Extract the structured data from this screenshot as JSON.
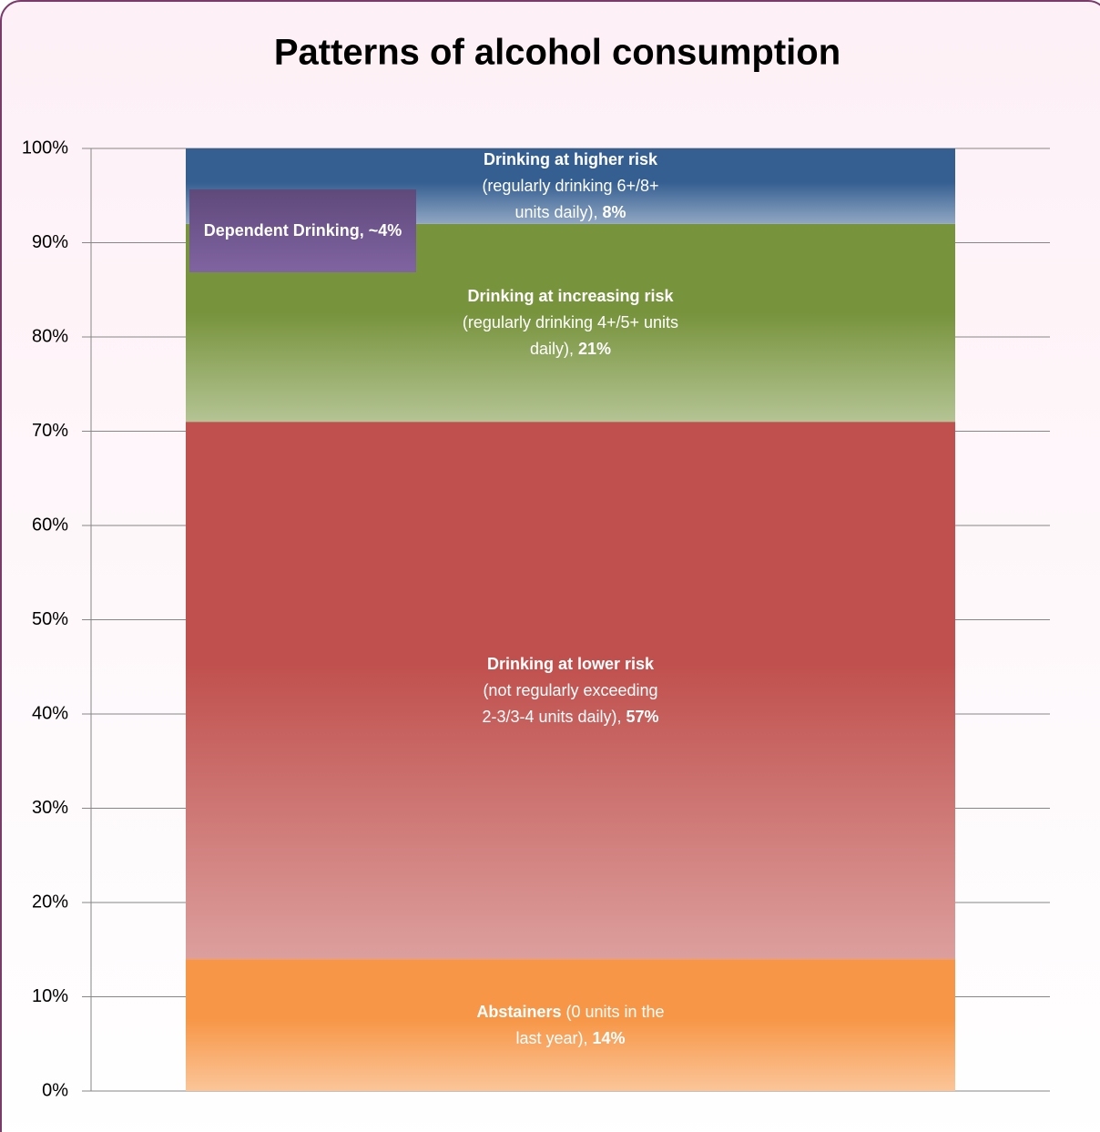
{
  "chart_data": {
    "type": "stacked-bar",
    "title": "Patterns of alcohol consumption",
    "ylim": [
      0,
      100
    ],
    "yticks": [
      {
        "value": 0,
        "label": "0%"
      },
      {
        "value": 10,
        "label": "10%"
      },
      {
        "value": 20,
        "label": "20%"
      },
      {
        "value": 30,
        "label": "30%"
      },
      {
        "value": 40,
        "label": "40%"
      },
      {
        "value": 50,
        "label": "50%"
      },
      {
        "value": 60,
        "label": "60%"
      },
      {
        "value": 70,
        "label": "70%"
      },
      {
        "value": 80,
        "label": "80%"
      },
      {
        "value": 90,
        "label": "90%"
      },
      {
        "value": 100,
        "label": "100%"
      }
    ],
    "grid": true,
    "series": [
      {
        "name": "Abstainers",
        "label_text": "(0 units in the last year),",
        "color": "#f79646",
        "values": [
          14
        ],
        "value_labels": [
          "14%"
        ]
      },
      {
        "name": "Drinking at lower risk",
        "label_text": "(not regularly exceeding 2-3/3-4 units daily),",
        "color": "#c0504d",
        "values": [
          57
        ],
        "value_labels": [
          "57%"
        ]
      },
      {
        "name": "Drinking at increasing risk",
        "label_text": "(regularly drinking 4+/5+ units daily),",
        "color": "#77933c",
        "values": [
          21
        ],
        "value_labels": [
          "21%"
        ]
      },
      {
        "name": "Drinking at higher risk",
        "label_text": "(regularly drinking 6+/8+ units daily),",
        "color": "#365f91",
        "values": [
          8
        ],
        "value_labels": [
          "8%"
        ]
      }
    ],
    "annotations": [
      {
        "text": "Dependent Drinking, ~4%"
      }
    ]
  }
}
